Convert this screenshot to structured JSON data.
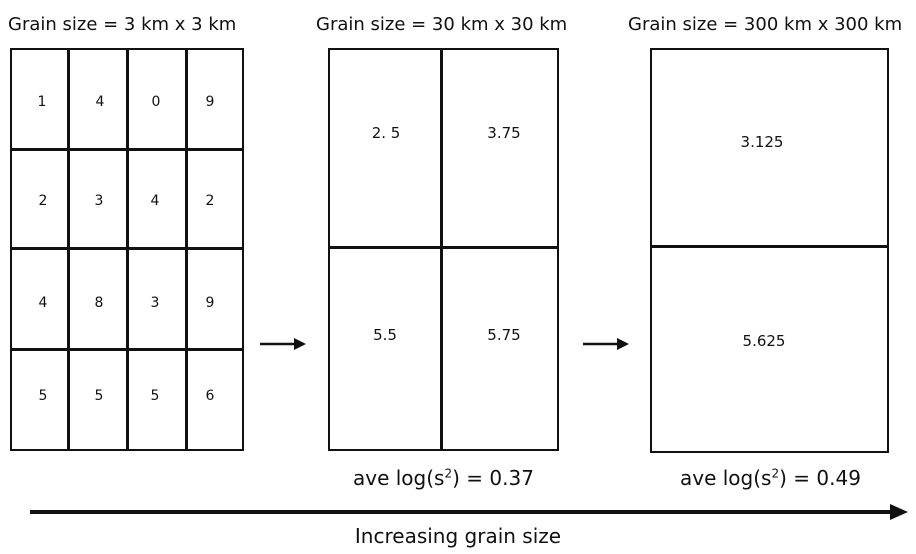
{
  "panels": [
    {
      "title": "Grain size = 3 km x 3 km",
      "cells": [
        [
          "1",
          "4",
          "0",
          "9"
        ],
        [
          "2",
          "3",
          "4",
          "2"
        ],
        [
          "4",
          "8",
          "3",
          "9"
        ],
        [
          "5",
          "5",
          "5",
          "6"
        ]
      ]
    },
    {
      "title": "Grain size = 30 km x 30 km",
      "cells": [
        [
          "2. 5",
          "3.75"
        ],
        [
          "5.5",
          "5.75"
        ]
      ],
      "caption_prefix": "ave log(s",
      "caption_sup": "2",
      "caption_suffix": ") = 0.37"
    },
    {
      "title": "Grain size = 300 km x 300 km",
      "cells": [
        [
          "3.125"
        ],
        [
          "5.625"
        ]
      ],
      "caption_prefix": "ave log(s",
      "caption_sup": "2",
      "caption_suffix": ") = 0.49"
    }
  ],
  "bottom_label": "Increasing grain size",
  "colors": {
    "ink": "#111111",
    "background": "#ffffff"
  }
}
